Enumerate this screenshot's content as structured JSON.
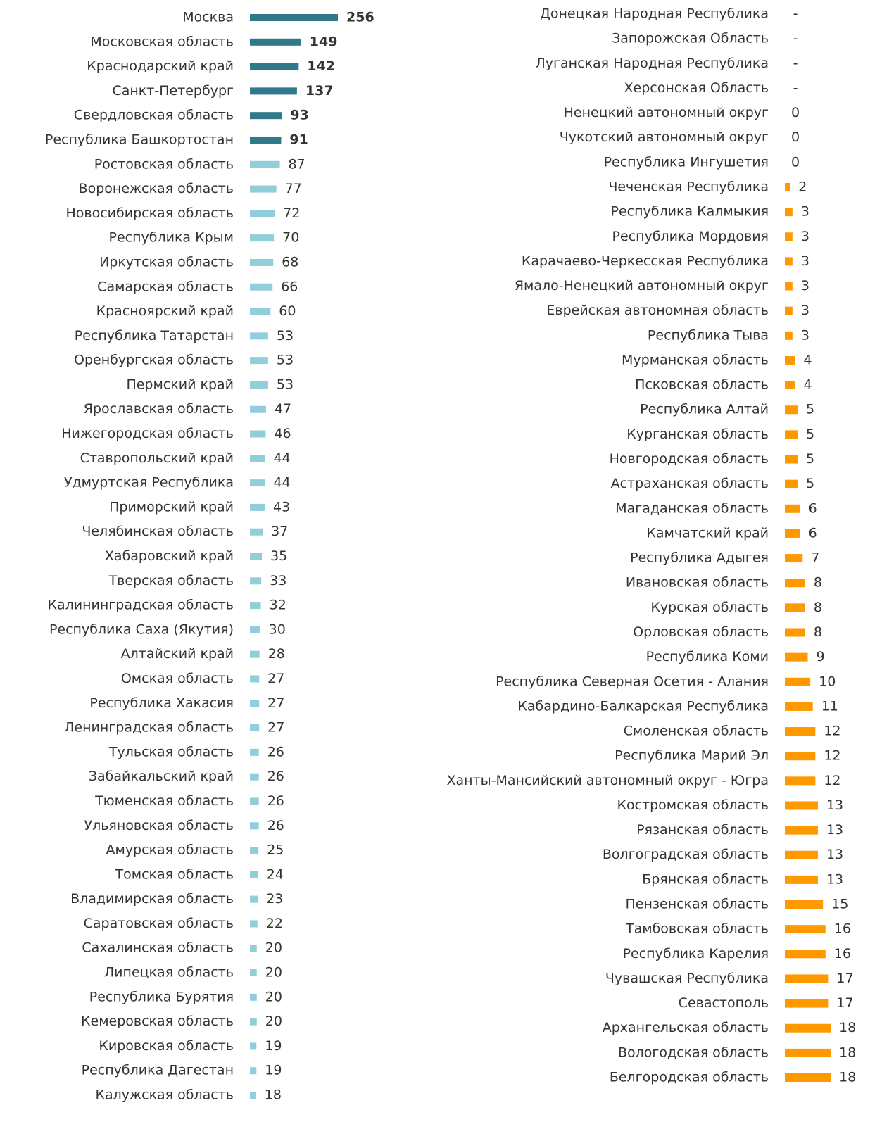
{
  "chart_data": [
    {
      "type": "hbar",
      "categories": [
        "Москва",
        "Московская область",
        "Краснодарский край",
        "Санкт-Петербург",
        "Свердловская область",
        "Республика Башкортостан",
        "Ростовская область",
        "Воронежская область",
        "Новосибирская область",
        "Республика Крым",
        "Иркутская область",
        "Самарская область",
        "Красноярский край",
        "Республика Татарстан",
        "Оренбургская область",
        "Пермский край",
        "Ярославская область",
        "Нижегородская область",
        "Ставропольский край",
        "Удмуртская Республика",
        "Приморский край",
        "Челябинская область",
        "Хабаровский край",
        "Тверская область",
        "Калининградская область",
        "Республика Саха (Якутия)",
        "Алтайский край",
        "Омская область",
        "Республика Хакасия",
        "Ленинградская область",
        "Тульская область",
        "Забайкальский край",
        "Тюменская область",
        "Ульяновская область",
        "Амурская область",
        "Томская область",
        "Владимирская область",
        "Саратовская область",
        "Сахалинская область",
        "Липецкая область",
        "Республика Бурятия",
        "Кемеровская область",
        "Кировская область",
        "Республика Дагестан",
        "Калужская область"
      ],
      "values": [
        256,
        149,
        142,
        137,
        93,
        91,
        87,
        77,
        72,
        70,
        68,
        66,
        60,
        53,
        53,
        53,
        47,
        46,
        44,
        44,
        43,
        37,
        35,
        33,
        32,
        30,
        28,
        27,
        27,
        27,
        26,
        26,
        26,
        26,
        25,
        24,
        23,
        22,
        20,
        20,
        20,
        20,
        19,
        19,
        18
      ],
      "colors": [
        "#31788a",
        "#31788a",
        "#31788a",
        "#31788a",
        "#31788a",
        "#31788a",
        "#92cddc",
        "#92cddc",
        "#92cddc",
        "#92cddc",
        "#92cddc",
        "#92cddc",
        "#92cddc",
        "#92cddc",
        "#92cddc",
        "#92cddc",
        "#92cddc",
        "#92cddc",
        "#92cddc",
        "#92cddc",
        "#92cddc",
        "#92cddc",
        "#92cddc",
        "#92cddc",
        "#92cddc",
        "#92cddc",
        "#92cddc",
        "#92cddc",
        "#92cddc",
        "#92cddc",
        "#92cddc",
        "#92cddc",
        "#92cddc",
        "#92cddc",
        "#92cddc",
        "#92cddc",
        "#92cddc",
        "#92cddc",
        "#92cddc",
        "#92cddc",
        "#92cddc",
        "#92cddc",
        "#92cddc",
        "#92cddc",
        "#92cddc"
      ],
      "xlim": [
        0,
        256
      ]
    },
    {
      "type": "hbar",
      "categories": [
        "Донецкая Народная Республика",
        "Запорожская Область",
        "Луганская Народная Республика",
        "Херсонская Область",
        "Ненецкий автономный округ",
        "Чукотский автономный округ",
        "Республика Ингушетия",
        "Чеченская Республика",
        "Республика Калмыкия",
        "Республика Мордовия",
        "Карачаево-Черкесская Республика",
        "Ямало-Ненецкий автономный округ",
        "Еврейская автономная область",
        "Республика Тыва",
        "Мурманская область",
        "Псковская область",
        "Республика Алтай",
        "Курганская область",
        "Новгородская область",
        "Астраханская область",
        "Магаданская область",
        "Камчатский край",
        "Республика Адыгея",
        "Ивановская область",
        "Курская область",
        "Орловская область",
        "Республика Коми",
        "Республика Северная Осетия - Алания",
        "Кабардино-Балкарская Республика",
        "Смоленская область",
        "Республика Марий Эл",
        "Ханты-Мансийский автономный округ - Югра",
        "Костромская область",
        "Рязанская область",
        "Волгоградская область",
        "Брянская область",
        "Пензенская область",
        "Тамбовская область",
        "Республика Карелия",
        "Чувашская Республика",
        "Севастополь",
        "Архангельская область",
        "Вологодская область",
        "Белгородская область"
      ],
      "values": [
        null,
        null,
        null,
        null,
        0,
        0,
        0,
        2,
        3,
        3,
        3,
        3,
        3,
        3,
        4,
        4,
        5,
        5,
        5,
        5,
        6,
        6,
        7,
        8,
        8,
        8,
        9,
        10,
        11,
        12,
        12,
        12,
        13,
        13,
        13,
        13,
        15,
        16,
        16,
        17,
        17,
        18,
        18,
        18
      ],
      "value_labels": [
        "-",
        "-",
        "-",
        "-",
        "0",
        "0",
        "0",
        "2",
        "3",
        "3",
        "3",
        "3",
        "3",
        "3",
        "4",
        "4",
        "5",
        "5",
        "5",
        "5",
        "6",
        "6",
        "7",
        "8",
        "8",
        "8",
        "9",
        "10",
        "11",
        "12",
        "12",
        "12",
        "13",
        "13",
        "13",
        "13",
        "15",
        "16",
        "16",
        "17",
        "17",
        "18",
        "18",
        "18"
      ],
      "color": "#ff9900",
      "xlim": [
        0,
        18
      ]
    }
  ]
}
